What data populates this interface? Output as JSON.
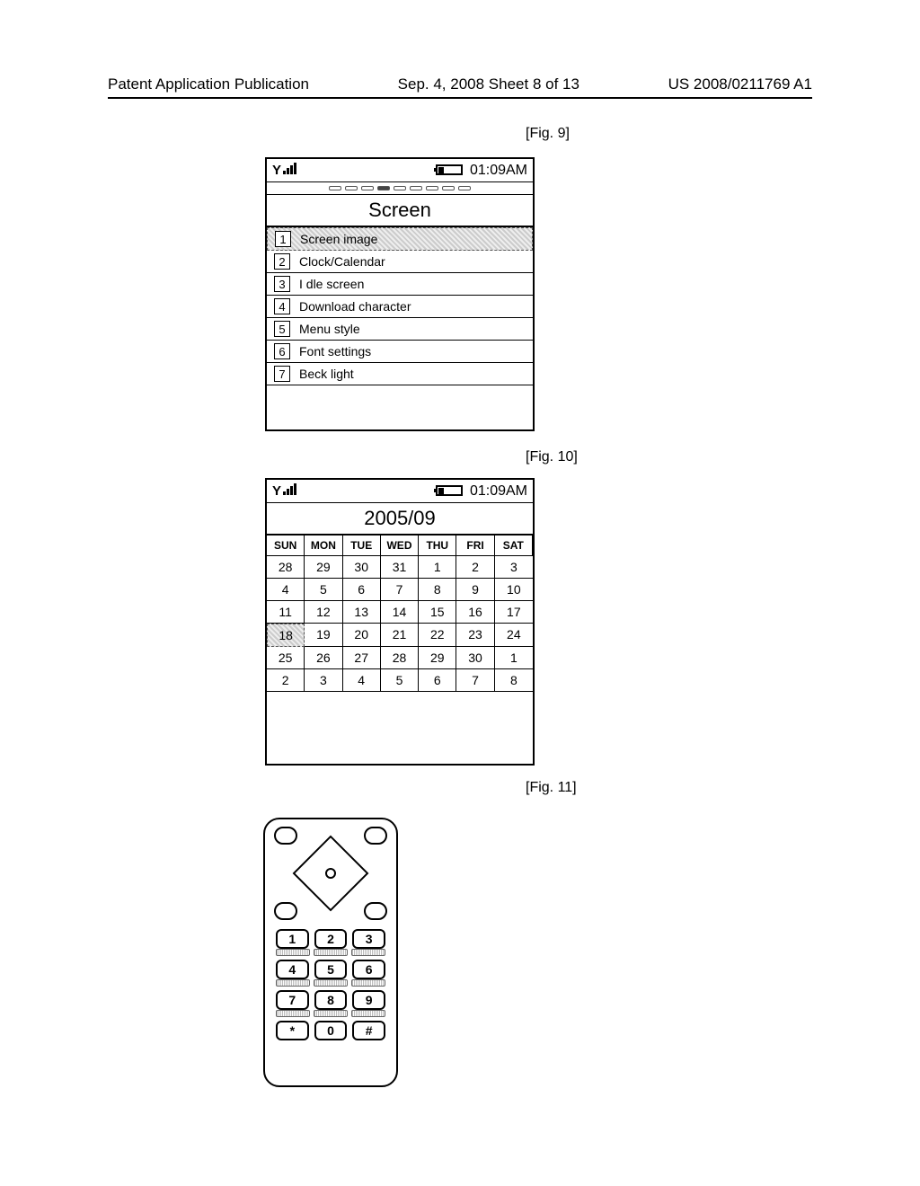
{
  "header": {
    "left": "Patent Application Publication",
    "mid": "Sep. 4, 2008  Sheet 8 of 13",
    "right": "US 2008/0211769 A1"
  },
  "figLabels": {
    "fig9": "[Fig. 9]",
    "fig10": "[Fig. 10]",
    "fig11": "[Fig. 11]"
  },
  "statusbar": {
    "time": "01:09AM"
  },
  "fig9screen": {
    "title": "Screen",
    "items": [
      {
        "n": "1",
        "label": "Screen image",
        "selected": true
      },
      {
        "n": "2",
        "label": "Clock/Calendar",
        "selected": false
      },
      {
        "n": "3",
        "label": "I dle screen",
        "selected": false
      },
      {
        "n": "4",
        "label": "Download character",
        "selected": false
      },
      {
        "n": "5",
        "label": "Menu style",
        "selected": false
      },
      {
        "n": "6",
        "label": "Font settings",
        "selected": false
      },
      {
        "n": "7",
        "label": "Beck light",
        "selected": false
      }
    ]
  },
  "fig10cal": {
    "title": "2005/09",
    "days": [
      "SUN",
      "MON",
      "TUE",
      "WED",
      "THU",
      "FRI",
      "SAT"
    ],
    "rows": [
      [
        "28",
        "29",
        "30",
        "31",
        "1",
        "2",
        "3"
      ],
      [
        "4",
        "5",
        "6",
        "7",
        "8",
        "9",
        "10"
      ],
      [
        "11",
        "12",
        "13",
        "14",
        "15",
        "16",
        "17"
      ],
      [
        "18",
        "19",
        "20",
        "21",
        "22",
        "23",
        "24"
      ],
      [
        "25",
        "26",
        "27",
        "28",
        "29",
        "30",
        "1"
      ],
      [
        "2",
        "3",
        "4",
        "5",
        "6",
        "7",
        "8"
      ]
    ],
    "selected": "18"
  },
  "keypad": {
    "keys": [
      "1",
      "2",
      "3",
      "4",
      "5",
      "6",
      "7",
      "8",
      "9",
      "*",
      "0",
      "#"
    ]
  }
}
